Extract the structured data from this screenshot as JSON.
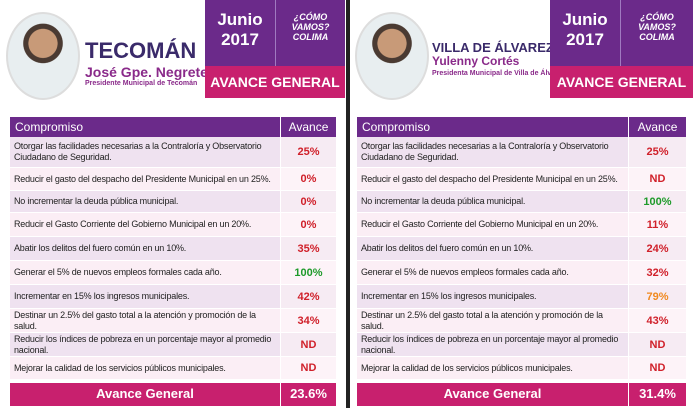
{
  "panels": [
    {
      "municipality": "TECOMÁN",
      "name": "José Gpe. Negrete",
      "role": "Presidente Municipal de Tecomán",
      "month": "Junio",
      "year": "2017",
      "logo": [
        "¿CÓMO",
        "VAMOS?",
        "COLIMA"
      ],
      "banner": "AVANCE GENERAL",
      "table": {
        "header": [
          "Compromiso",
          "Avance"
        ],
        "rows": [
          [
            "Otorgar las facilidades necesarias a la Contraloría y Observatorio Ciudadano de Seguridad.",
            "25%"
          ],
          [
            "Reducir el gasto del despacho del Presidente Municipal en un 25%.",
            "0%"
          ],
          [
            "No incrementar la deuda pública municipal.",
            "0%"
          ],
          [
            "Reducir el Gasto Corriente del Gobierno Municipal en un 20%.",
            "0%"
          ],
          [
            "Abatir los delitos del fuero común en un 10%.",
            "35%"
          ],
          [
            "Generar el 5% de nuevos empleos formales cada año.",
            "100%"
          ],
          [
            "Incrementar en 15% los ingresos municipales.",
            "42%"
          ],
          [
            "Destinar un 2.5% del gasto total a la atención y promoción de la salud.",
            "34%"
          ],
          [
            "Reducir los índices de pobreza en un porcentaje mayor al promedio nacional.",
            "ND"
          ],
          [
            "Mejorar la calidad de los servicios públicos municipales.",
            "ND"
          ]
        ],
        "colors": [
          "#d0202a",
          "#d0202a",
          "#d0202a",
          "#d0202a",
          "#d0202a",
          "#1e9a2a",
          "#d0202a",
          "#d0202a",
          "#d0202a",
          "#d0202a"
        ],
        "footer": [
          "Avance General",
          "23.6%"
        ]
      }
    },
    {
      "municipality": "VILLA DE ÁLVAREZ",
      "name": "Yulenny Cortés",
      "role": "Presidenta Municipal de Villa de Álvarez",
      "month": "Junio",
      "year": "2017",
      "logo": [
        "¿CÓMO",
        "VAMOS?",
        "COLIMA"
      ],
      "banner": "AVANCE GENERAL",
      "table": {
        "header": [
          "Compromiso",
          "Avance"
        ],
        "rows": [
          [
            "Otorgar las facilidades necesarias a la Contraloría y Observatorio Ciudadano de Seguridad.",
            "25%"
          ],
          [
            "Reducir el gasto del despacho del Presidente Municipal en un 25%.",
            "ND"
          ],
          [
            "No incrementar la deuda pública municipal.",
            "100%"
          ],
          [
            "Reducir el Gasto Corriente del Gobierno Municipal en un 20%.",
            "11%"
          ],
          [
            "Abatir los delitos del fuero común en un 10%.",
            "24%"
          ],
          [
            "Generar el 5% de nuevos empleos formales cada año.",
            "32%"
          ],
          [
            "Incrementar en 15% los ingresos municipales.",
            "79%"
          ],
          [
            "Destinar un 2.5% del gasto total a la atención y promoción de la salud.",
            "43%"
          ],
          [
            "Reducir los índices de pobreza en un porcentaje mayor al promedio nacional.",
            "ND"
          ],
          [
            "Mejorar la calidad de los servicios públicos municipales.",
            "ND"
          ]
        ],
        "colors": [
          "#d0202a",
          "#d0202a",
          "#1e9a2a",
          "#d0202a",
          "#d0202a",
          "#d0202a",
          "#f08a20",
          "#d0202a",
          "#d0202a",
          "#d0202a"
        ],
        "footer": [
          "Avance General",
          "31.4%"
        ]
      }
    }
  ]
}
